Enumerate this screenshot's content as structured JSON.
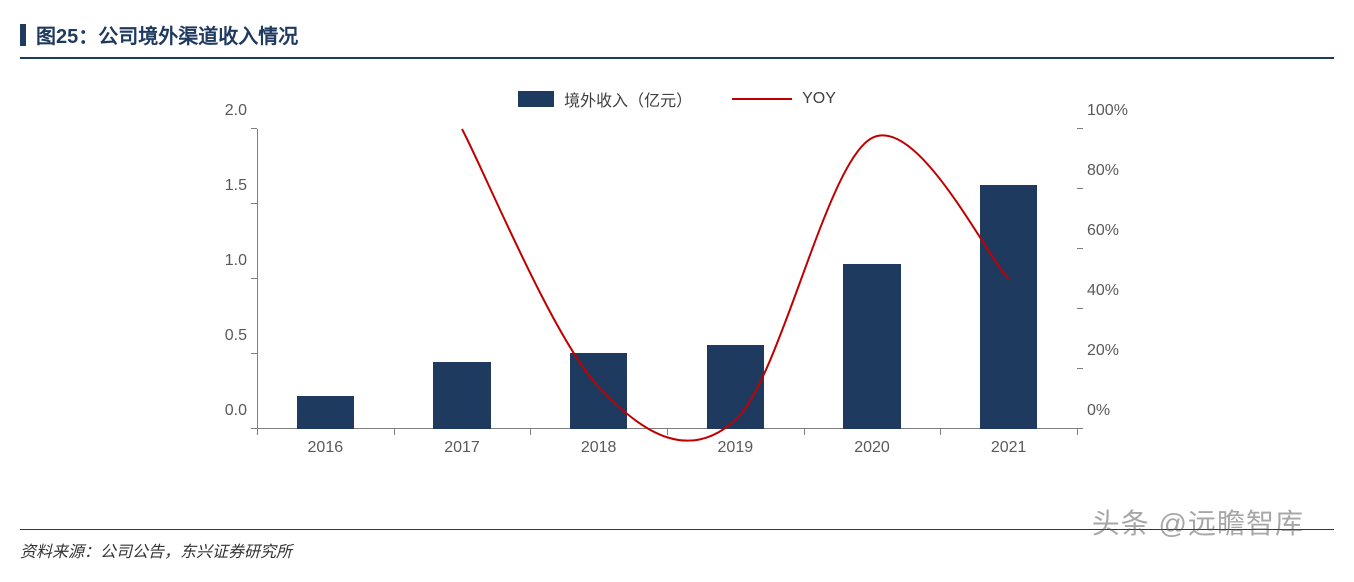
{
  "header": {
    "title": "图25：公司境外渠道收入情况",
    "accent_color": "#1f3a5f",
    "title_color": "#1f3a5f",
    "title_fontsize": 20
  },
  "chart": {
    "type": "bar+line",
    "bar_series": {
      "label": "境外收入（亿元）",
      "color": "#1f3a5f",
      "categories": [
        "2016",
        "2017",
        "2018",
        "2019",
        "2020",
        "2021"
      ],
      "values": [
        0.22,
        0.45,
        0.51,
        0.56,
        1.1,
        1.63
      ],
      "bar_width_pct": 7
    },
    "line_series": {
      "label": "YOY",
      "color": "#c00000",
      "line_width": 2,
      "categories": [
        "2017",
        "2018",
        "2019",
        "2020",
        "2021"
      ],
      "values": [
        100,
        14,
        3,
        97,
        50
      ]
    },
    "y_left": {
      "min": 0.0,
      "max": 2.0,
      "step": 0.5,
      "ticks": [
        "0.0",
        "0.5",
        "1.0",
        "1.5",
        "2.0"
      ],
      "label_color": "#595959"
    },
    "y_right": {
      "min": 0,
      "max": 100,
      "step": 20,
      "ticks": [
        "0%",
        "20%",
        "40%",
        "60%",
        "80%",
        "100%"
      ],
      "label_color": "#595959"
    },
    "axis_color": "#808080",
    "background": "#ffffff",
    "tick_fontsize": 16
  },
  "footer": {
    "source": "资料来源：公司公告，东兴证券研究所",
    "source_color": "#333333",
    "watermark": "头条 @远瞻智库"
  }
}
